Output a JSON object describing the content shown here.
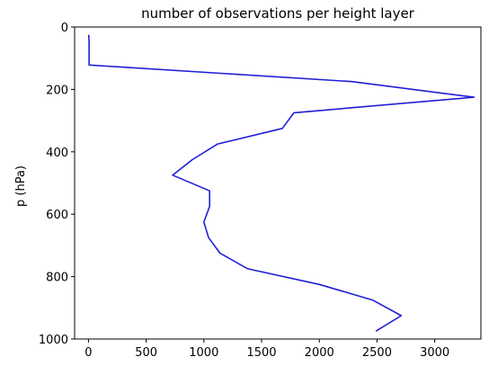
{
  "chart_data": {
    "type": "line",
    "title": "number of observations per height layer",
    "xlabel": "",
    "ylabel": "p (hPa)",
    "xlim": [
      -120,
      3400
    ],
    "ylim": [
      1000,
      0
    ],
    "y_inverted": true,
    "grid": false,
    "x_ticks": [
      0,
      500,
      1000,
      1500,
      2000,
      2500,
      3000
    ],
    "y_ticks": [
      0,
      200,
      400,
      600,
      800,
      1000
    ],
    "series": [
      {
        "color": "#1f1fd6",
        "x": [
          2,
          5,
          5,
          2280,
          3340,
          1780,
          1680,
          1120,
          900,
          730,
          1050,
          1050,
          1000,
          1040,
          1140,
          1380,
          2000,
          2460,
          2710,
          2490
        ],
        "y": [
          25,
          50,
          122,
          175,
          225,
          275,
          325,
          375,
          425,
          475,
          525,
          575,
          625,
          675,
          725,
          775,
          825,
          875,
          925,
          975
        ]
      }
    ]
  }
}
